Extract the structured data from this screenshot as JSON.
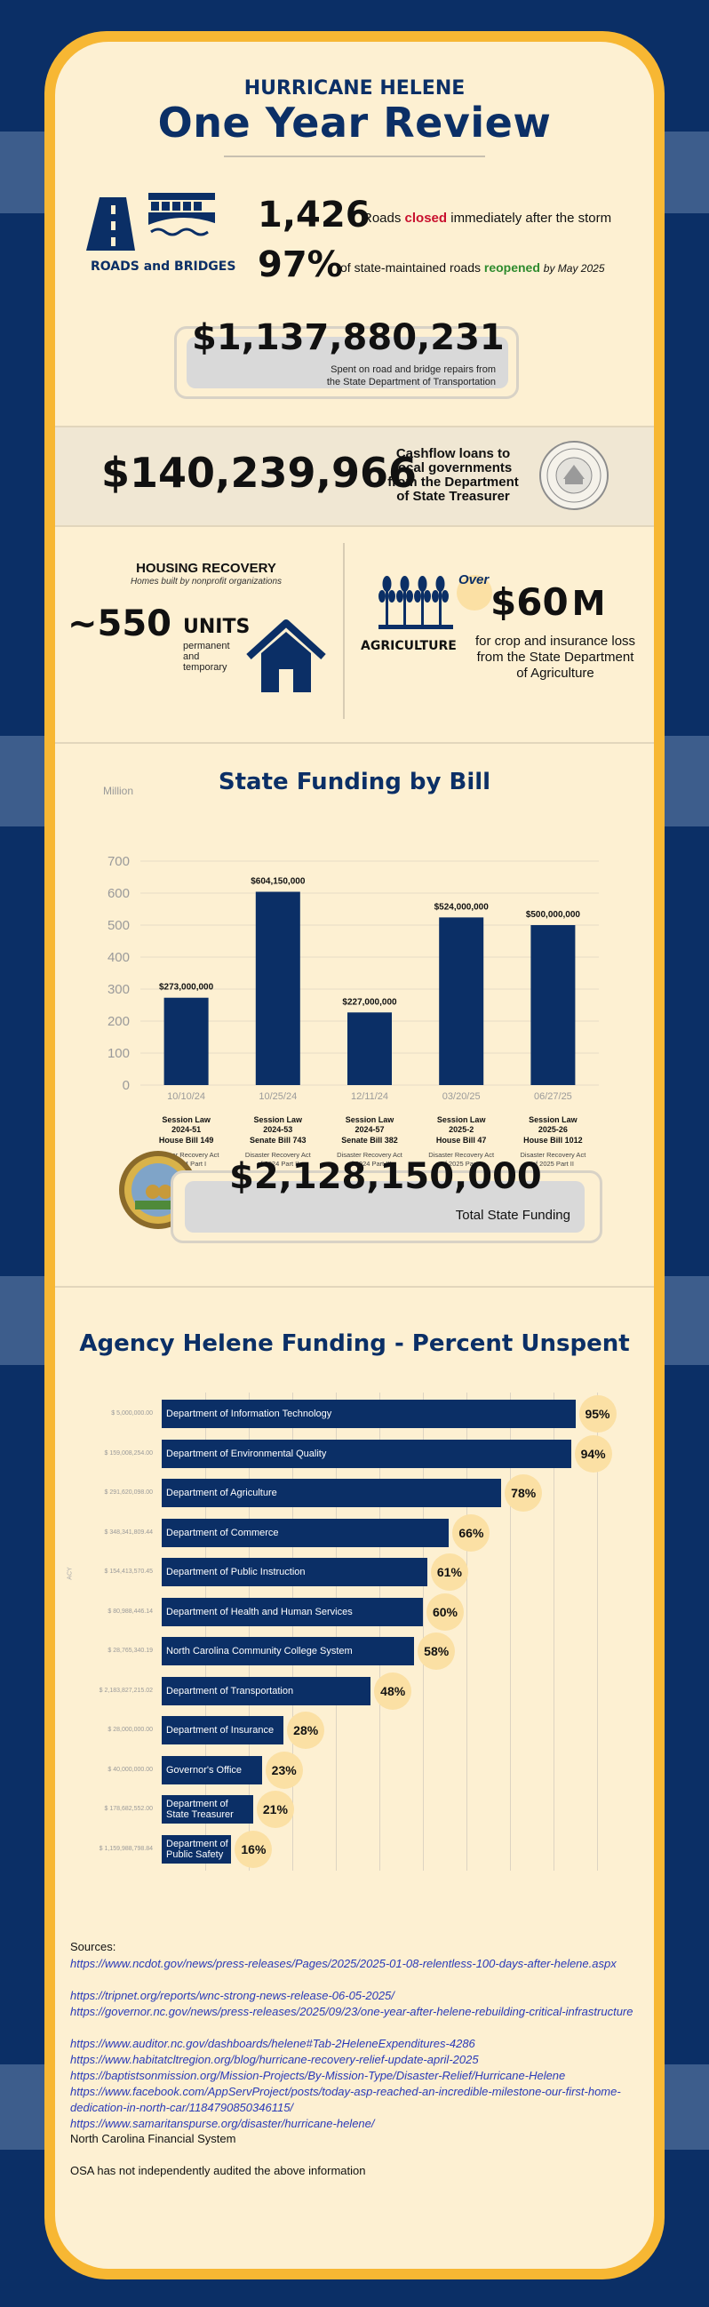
{
  "header": {
    "title_top": "HURRICANE HELENE",
    "title_main": "One Year Review"
  },
  "roads": {
    "label": "ROADS and BRIDGES",
    "closed_number": "1,426",
    "closed_pre": "Roads",
    "closed_word": "closed",
    "closed_post": "immediately after the storm",
    "reopened_pct": "97%",
    "reopened_pre": "of state-maintained roads",
    "reopened_word": "reopened",
    "reopened_post": "by May 2025",
    "spent_amount": "$1,137,880,231",
    "spent_line1": "Spent on road and bridge repairs from",
    "spent_line2": "the State Department of Transportation",
    "color_closed": "#c8102e",
    "color_reopened": "#2e8b2e"
  },
  "treasurer": {
    "amount": "$140,239,966",
    "line1": "Cashflow loans to",
    "line2": "local governments",
    "line3": "from the Department",
    "line4": "of State Treasurer",
    "seal_icon": "treasurer-seal-icon"
  },
  "housing": {
    "title": "HOUSING RECOVERY",
    "subtitle": "Homes built by nonprofit organizations",
    "number": "~550",
    "units": "UNITS",
    "desc1": "permanent",
    "desc2": "and",
    "desc3": "temporary",
    "icon": "house-icon"
  },
  "agriculture": {
    "label": "AGRICULTURE",
    "over": "Over",
    "amount": "$60",
    "unit": "M",
    "line1": "for crop and insurance loss",
    "line2": "from the State Department",
    "line3": "of Agriculture",
    "icon": "wheat-icon"
  },
  "chart_data": [
    {
      "type": "bar",
      "title": "State Funding by Bill",
      "ylabel": "Million",
      "ylim": [
        0,
        700
      ],
      "yticks": [
        "0",
        "100",
        "200",
        "300",
        "400",
        "500",
        "600",
        "700"
      ],
      "categories": [
        "10/10/24",
        "10/25/24",
        "12/11/24",
        "03/20/25",
        "06/27/25"
      ],
      "values": [
        273,
        604.15,
        227,
        524,
        500
      ],
      "value_labels": [
        "$273,000,000",
        "$604,150,000",
        "$227,000,000",
        "$524,000,000",
        "$500,000,000"
      ],
      "session": [
        "Session Law 2024-51",
        "Session Law 2024-53",
        "Session Law 2024-57",
        "Session Law 2025-2",
        "Session Law 2025-26"
      ],
      "bill": [
        "House Bill 149",
        "Senate Bill 743",
        "Senate Bill 382",
        "House Bill 47",
        "House Bill 1012"
      ],
      "act": [
        "Disaster Recovery Act of 2024 Part I",
        "Disaster Recovery Act of 2024 Part II",
        "Disaster Recovery Act of 2024 Part III",
        "Disaster Recovery Act of 2025 Part I",
        "Disaster Recovery Act of 2025 Part II"
      ],
      "bar_color": "#0b2f66",
      "grid": true
    },
    {
      "type": "bar",
      "orientation": "horizontal",
      "title": "Agency Helene Funding - Percent Unspent",
      "ylabel": "ACY",
      "categories": [
        "Department of Information Technology",
        "Department of Environmental Quality",
        "Department of Agriculture",
        "Department of Commerce",
        "Department of Public Instruction",
        "Department of Health and Human Services",
        "North Carolina Community College System",
        "Department of Transportation",
        "Department of Insurance",
        "Governor's Office",
        "Department of State Treasurer",
        "Department of Public Safety"
      ],
      "values": [
        95,
        94,
        78,
        66,
        61,
        60,
        58,
        48,
        28,
        23,
        21,
        16
      ],
      "value_labels": [
        "95%",
        "94%",
        "78%",
        "66%",
        "61%",
        "60%",
        "58%",
        "48%",
        "28%",
        "23%",
        "21%",
        "16%"
      ],
      "amounts": [
        "5,000,000.00",
        "159,008,254.00",
        "291,620,098.00",
        "348,341,809.44",
        "154,413,570.45",
        "80,988,446.14",
        "28,765,340.19",
        "2,183,827,215.02",
        "28,000,000.00",
        "40,000,000.00",
        "178,682,552.00",
        "1,159,988,798.84"
      ],
      "xlim": [
        0,
        100
      ],
      "bar_color": "#0b2f66",
      "grid": true
    }
  ],
  "state_total": {
    "amount": "$2,128,150,000",
    "label": "Total State Funding",
    "seal_icon": "state-seal-icon"
  },
  "sources": {
    "title": "Sources:",
    "links": [
      "https://www.ncdot.gov/news/press-releases/Pages/2025/2025-01-08-relentless-100-days-after-helene.aspx",
      "https://tripnet.org/reports/wnc-strong-news-release-06-05-2025/",
      "https://governor.nc.gov/news/press-releases/2025/09/23/one-year-after-helene-rebuilding-critical-infrastructure",
      "https://www.auditor.nc.gov/dashboards/helene#Tab-2HeleneExpenditures-4286",
      "https://www.habitatcltregion.org/blog/hurricane-recovery-relief-update-april-2025",
      "https://baptistsonmission.org/Mission-Projects/By-Mission-Type/Disaster-Relief/Hurricane-Helene",
      "https://www.facebook.com/AppServProject/posts/today-asp-reached-an-incredible-milestone-our-first-home-dedication-in-north-car/1184790850346115/",
      "https://www.samaritanspurse.org/disaster/hurricane-helene/"
    ],
    "plain": "North Carolina Financial System",
    "disclaimer": "OSA has not independently audited the above information"
  }
}
